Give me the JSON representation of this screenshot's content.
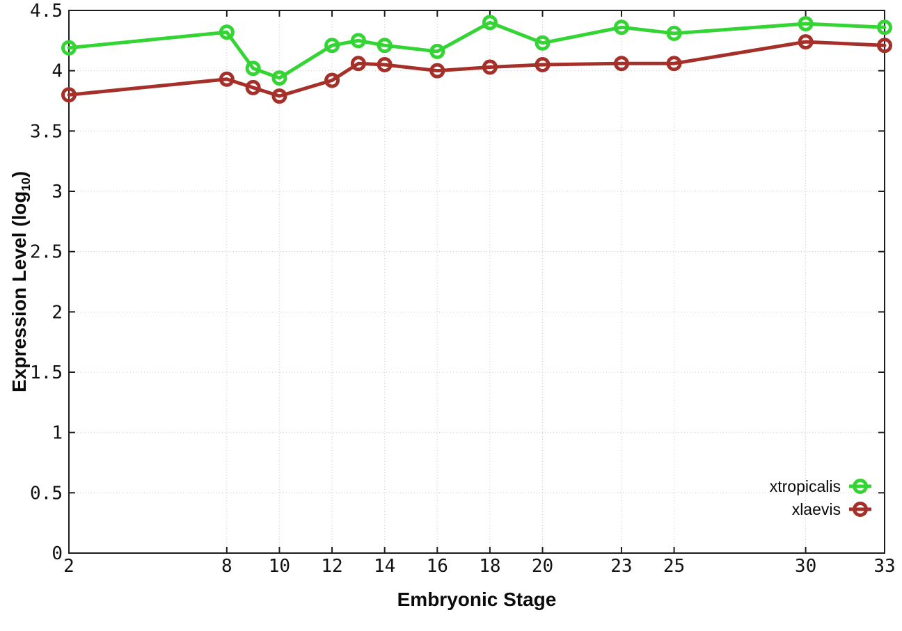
{
  "figure": {
    "background": "#ffffff",
    "border_color": "#1c1c1c",
    "grid_color": "#c8c8c8",
    "tick_label_color": "#111111"
  },
  "chart_data": {
    "type": "line",
    "title": "",
    "xlabel": "Embryonic Stage",
    "ylabel": "Expression Level (log10)",
    "xlim": [
      2,
      33
    ],
    "ylim": [
      0,
      4.5
    ],
    "grid": true,
    "legend_position": "inside-bottom-right",
    "marker": "open-circle",
    "x_ticks": [
      2,
      8,
      10,
      12,
      14,
      16,
      18,
      20,
      23,
      25,
      30,
      33
    ],
    "x_tick_labels": [
      "2",
      "8",
      "10",
      "12",
      "14",
      "16",
      "18",
      "20",
      "23",
      "25",
      "30",
      "33"
    ],
    "y_ticks": [
      0,
      0.5,
      1,
      1.5,
      2,
      2.5,
      3,
      3.5,
      4,
      4.5
    ],
    "y_tick_labels": [
      "0",
      "0.5",
      "1",
      "1.5",
      "2",
      "2.5",
      "3",
      "3.5",
      "4",
      "4.5"
    ],
    "x": [
      2,
      8,
      9,
      10,
      12,
      13,
      14,
      16,
      18,
      20,
      23,
      25,
      30,
      33
    ],
    "series": [
      {
        "name": "xtropicalis",
        "color": "#33d433",
        "values": [
          4.19,
          4.32,
          4.02,
          3.94,
          4.21,
          4.25,
          4.21,
          4.16,
          4.4,
          4.23,
          4.36,
          4.31,
          4.39,
          4.36
        ]
      },
      {
        "name": "xlaevis",
        "color": "#a5302a",
        "values": [
          3.8,
          3.93,
          3.86,
          3.79,
          3.92,
          4.06,
          4.05,
          4.0,
          4.03,
          4.05,
          4.06,
          4.06,
          4.24,
          4.21
        ]
      }
    ]
  },
  "ylabel_parts": {
    "main": "Expression Level (log",
    "sub": "10",
    "close": ")"
  }
}
